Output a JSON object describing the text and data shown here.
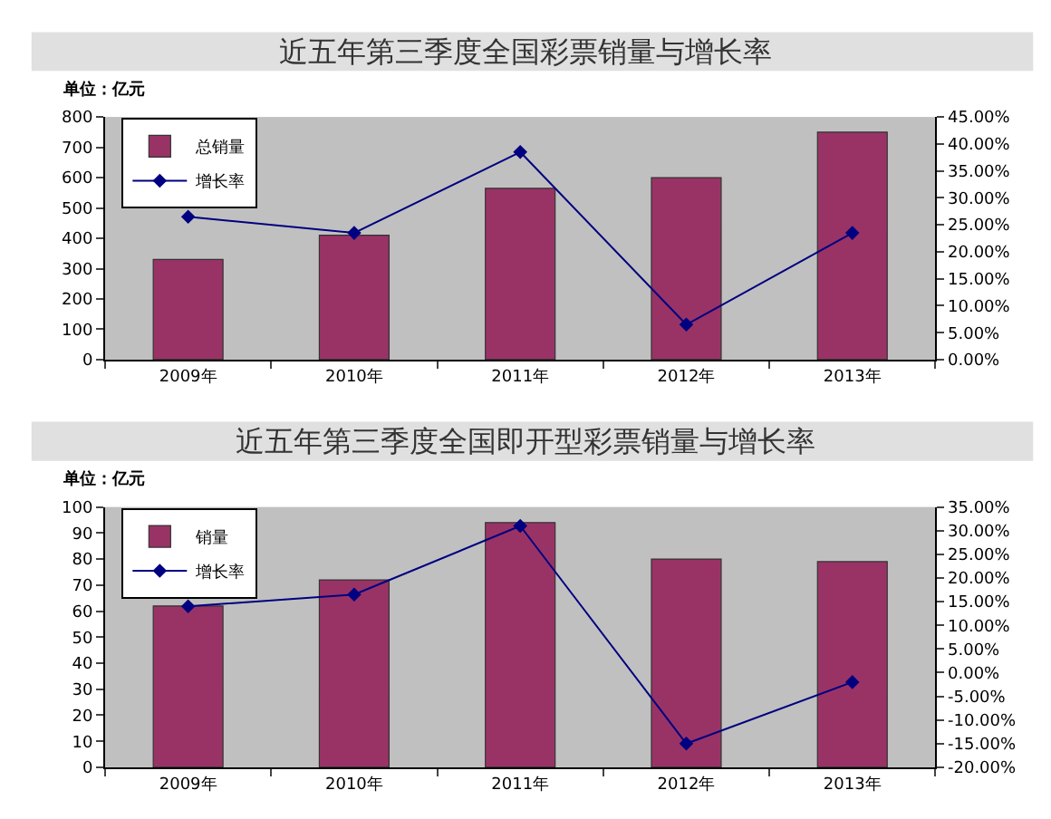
{
  "chart_data": [
    {
      "type": "bar",
      "title": "近五年第三季度全国彩票销量与增长率",
      "annotations": [
        "单位：亿元"
      ],
      "categories": [
        "2009年",
        "2010年",
        "2011年",
        "2012年",
        "2013年"
      ],
      "series": [
        {
          "name": "总销量",
          "color": "#993366",
          "values": [
            330,
            410,
            565,
            600,
            750
          ]
        },
        {
          "name": "增长率",
          "type": "line",
          "axis": "y2",
          "color": "#000080",
          "values": [
            26.5,
            23.5,
            38.5,
            6.5,
            23.5
          ]
        }
      ],
      "ylim": [
        0,
        800
      ],
      "yticks": [
        0,
        100,
        200,
        300,
        400,
        500,
        600,
        700,
        800
      ],
      "y2lim": [
        0,
        45
      ],
      "y2ticks": [
        {
          "value": 0,
          "label": "0.00%"
        },
        {
          "value": 5,
          "label": "5.00%"
        },
        {
          "value": 10,
          "label": "10.00%"
        },
        {
          "value": 15,
          "label": "15.00%"
        },
        {
          "value": 20,
          "label": "20.00%"
        },
        {
          "value": 25,
          "label": "25.00%"
        },
        {
          "value": 30,
          "label": "30.00%"
        },
        {
          "value": 35,
          "label": "35.00%"
        },
        {
          "value": 40,
          "label": "40.00%"
        },
        {
          "value": 45,
          "label": "45.00%"
        }
      ],
      "marker": "diamond",
      "line_style": "solid",
      "grid": false,
      "legend": "top left"
    },
    {
      "type": "bar",
      "title": "近五年第三季度全国即开型彩票销量与增长率",
      "annotations": [
        "单位：亿元"
      ],
      "categories": [
        "2009年",
        "2010年",
        "2011年",
        "2012年",
        "2013年"
      ],
      "series": [
        {
          "name": "销量",
          "color": "#993366",
          "values": [
            62,
            72,
            94,
            80,
            79
          ]
        },
        {
          "name": "增长率",
          "type": "line",
          "axis": "y2",
          "color": "#000080",
          "values": [
            14,
            16.5,
            31,
            -15,
            -2
          ]
        }
      ],
      "ylim": [
        0,
        100
      ],
      "yticks": [
        0,
        10,
        20,
        30,
        40,
        50,
        60,
        70,
        80,
        90,
        100
      ],
      "y2lim": [
        -20,
        35
      ],
      "y2ticks": [
        {
          "value": -20,
          "label": "-20.00%"
        },
        {
          "value": -15,
          "label": "-15.00%"
        },
        {
          "value": -10,
          "label": "-10.00%"
        },
        {
          "value": -5,
          "label": "-5.00%"
        },
        {
          "value": 0,
          "label": "0.00%"
        },
        {
          "value": 5,
          "label": "5.00%"
        },
        {
          "value": 10,
          "label": "10.00%"
        },
        {
          "value": 15,
          "label": "15.00%"
        },
        {
          "value": 20,
          "label": "20.00%"
        },
        {
          "value": 25,
          "label": "25.00%"
        },
        {
          "value": 30,
          "label": "30.00%"
        },
        {
          "value": 35,
          "label": "35.00%"
        }
      ],
      "marker": "diamond",
      "line_style": "solid",
      "grid": false,
      "legend": "top left"
    }
  ]
}
